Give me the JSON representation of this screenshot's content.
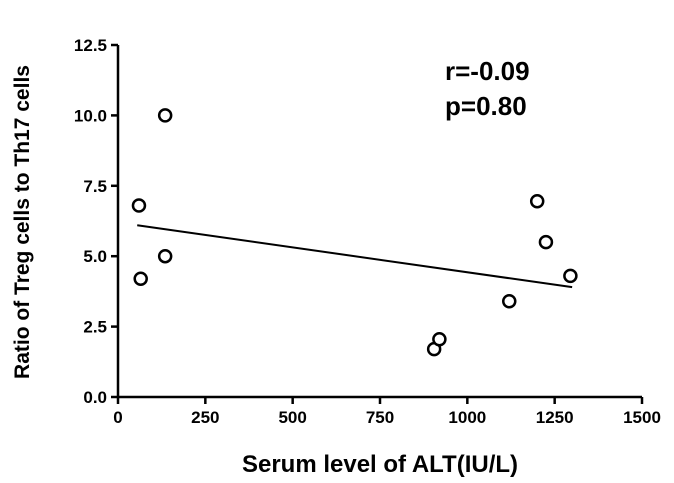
{
  "chart_data": {
    "type": "scatter",
    "xlabel": "Serum level of ALT(IU/L)",
    "ylabel": "Ratio of Treg cells to Th17 cells",
    "xlim": [
      0,
      1500
    ],
    "ylim": [
      0,
      12.5
    ],
    "x_ticks": [
      0,
      250,
      500,
      750,
      1000,
      1250,
      1500
    ],
    "x_tick_labels": [
      "0",
      "250",
      "500",
      "750",
      "1000",
      "1250",
      "1500"
    ],
    "y_ticks": [
      0,
      2.5,
      5,
      7.5,
      10,
      12.5
    ],
    "y_tick_labels": [
      "0.0",
      "2.5",
      "5.0",
      "7.5",
      "10.0",
      "12.5"
    ],
    "grid": false,
    "points": [
      {
        "x": 60,
        "y": 6.8
      },
      {
        "x": 65,
        "y": 4.2
      },
      {
        "x": 135,
        "y": 10.0
      },
      {
        "x": 135,
        "y": 5.0
      },
      {
        "x": 905,
        "y": 1.7
      },
      {
        "x": 920,
        "y": 2.05
      },
      {
        "x": 1120,
        "y": 3.4
      },
      {
        "x": 1200,
        "y": 6.95
      },
      {
        "x": 1225,
        "y": 5.5
      },
      {
        "x": 1295,
        "y": 4.3
      }
    ],
    "regression_line": {
      "x": [
        55,
        1300
      ],
      "y": [
        6.1,
        3.9
      ]
    },
    "annotations": [
      "r=-0.09",
      "p=0.80"
    ],
    "colors": {
      "marker_stroke": "#000000",
      "marker_fill": "#ffffff",
      "line": "#000000"
    }
  }
}
